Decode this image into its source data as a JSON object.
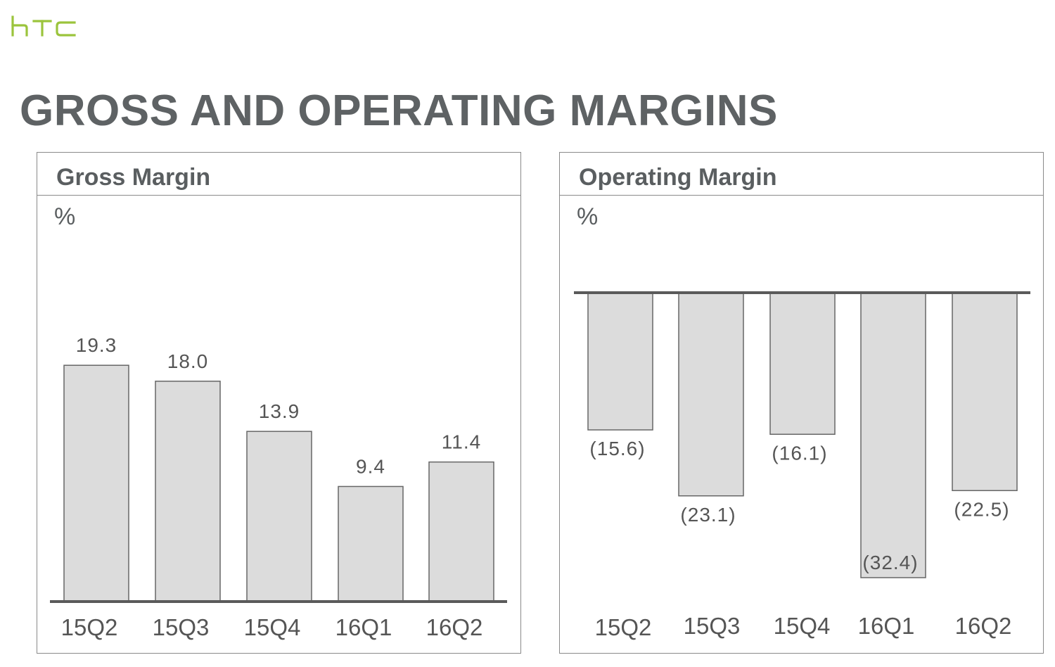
{
  "brand": {
    "logo_text": "htc",
    "logo_color": "#9bc43c"
  },
  "page_title": "GROSS AND OPERATING MARGINS",
  "colors": {
    "bar_fill": "#dcdcdc",
    "bar_stroke": "#666666",
    "axis": "#5a5a5a",
    "text": "#555555"
  },
  "chart_data": [
    {
      "type": "bar",
      "title": "Gross Margin",
      "unit": "%",
      "categories": [
        "15Q2",
        "15Q3",
        "15Q4",
        "16Q1",
        "16Q2"
      ],
      "values": [
        19.3,
        18.0,
        13.9,
        9.4,
        11.4
      ],
      "value_labels": [
        "19.3",
        "18.0",
        "13.9",
        "9.4",
        "11.4"
      ],
      "ylim": [
        0,
        25
      ],
      "grid": false,
      "legend": "none"
    },
    {
      "type": "bar",
      "title": "Operating Margin",
      "unit": "%",
      "categories": [
        "15Q2",
        "15Q3",
        "15Q4",
        "16Q1",
        "16Q2"
      ],
      "values": [
        -15.6,
        -23.1,
        -16.1,
        -32.4,
        -22.5
      ],
      "value_labels": [
        "(15.6)",
        "(23.1)",
        "(16.1)",
        "(32.4)",
        "(22.5)"
      ],
      "ylim": [
        -35,
        0
      ],
      "grid": false,
      "legend": "none"
    }
  ]
}
